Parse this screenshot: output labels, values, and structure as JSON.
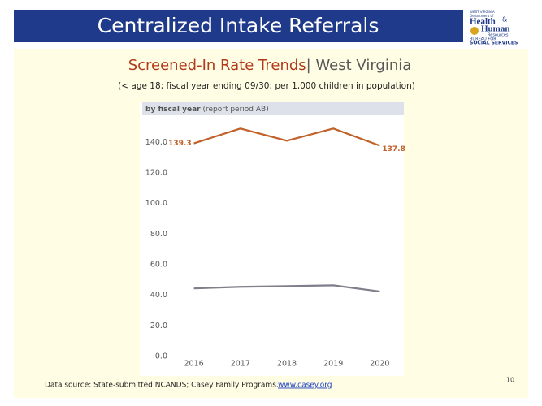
{
  "slide": {
    "title": "Centralized Intake Referrals",
    "logo": {
      "top": "WEST VIRGINIA",
      "dept": "Department of",
      "line1": "Health",
      "amp": "&",
      "line2": "Human",
      "line3": "Resources",
      "bureau": "BUREAU FOR",
      "services": "SOCIAL SERVICES"
    },
    "source": "Data source: State-submitted NCANDS; Casey Family Programs.",
    "link": "www.casey.org",
    "page_number": "10"
  },
  "chart_data": {
    "type": "line",
    "title": "Screened-In Rate Trends",
    "title_suffix": "| West Virginia",
    "subtitle": "(< age 18; fiscal year ending 09/30; per 1,000 children in population)",
    "panel_label": "by fiscal year",
    "panel_note": "(report period AB)",
    "categories": [
      "2016",
      "2017",
      "2018",
      "2019",
      "2020"
    ],
    "series": [
      {
        "color": "#c0622a",
        "values": [
          139.3,
          149,
          141,
          149,
          137.8
        ],
        "value_labels": [
          "139.3",
          null,
          null,
          null,
          "137.8"
        ]
      },
      {
        "color": "#7f7f8c",
        "values": [
          44.5,
          45.5,
          46,
          46.5,
          42.5
        ]
      }
    ],
    "ylim": [
      0,
      155
    ],
    "yticks": [
      {
        "value": 0,
        "label": "0.0"
      },
      {
        "value": 20,
        "label": "20.0"
      },
      {
        "value": 40,
        "label": "40.0"
      },
      {
        "value": 60,
        "label": "60.0"
      },
      {
        "value": 80,
        "label": "80.0"
      },
      {
        "value": 100,
        "label": "100.0"
      },
      {
        "value": 120,
        "label": "120.0"
      },
      {
        "value": 140,
        "label": "140.0"
      }
    ],
    "grid": false
  }
}
